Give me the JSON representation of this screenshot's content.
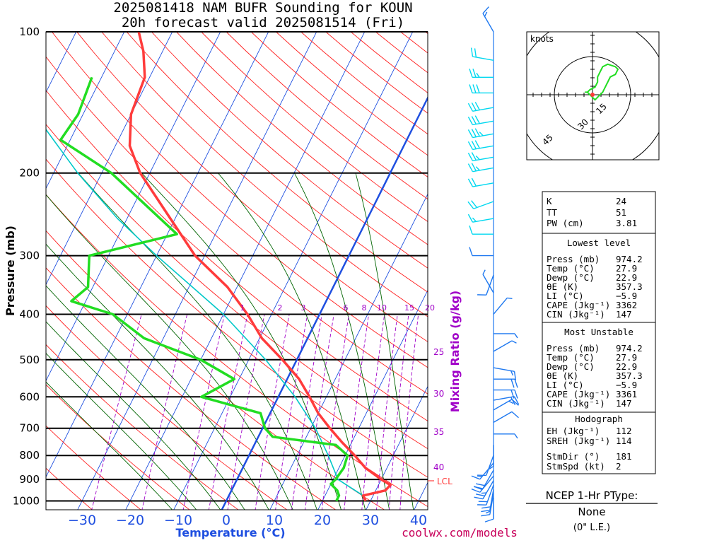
{
  "header": {
    "title_line1": "2025081418 NAM BUFR Sounding for KOUN",
    "title_line2": "20h forecast valid 2025081514 (Fri)"
  },
  "colors": {
    "temperature": "#ff3b3b",
    "dewpoint": "#22dd22",
    "parcel": "#00c8c8",
    "isotherm": "#1f4fe0",
    "dry_adiabat": "#ff2020",
    "moist_adiabat": "#006400",
    "mixing_ratio": "#a000c8",
    "freezing_line": "#1f4fe0",
    "wind_upper": "#00d8f0",
    "wind_lower": "#1e78f0"
  },
  "chart_data": {
    "type": "skew-t",
    "ylabel": "Pressure (mb)",
    "xlabel": "Temperature (°C)",
    "mixing_ratio_label": "Mixing Ratio (g/kg)",
    "pressure_ticks": [
      "100",
      "200",
      "300",
      "400",
      "500",
      "600",
      "700",
      "800",
      "900",
      "1000"
    ],
    "temperature_ticks": [
      "−30",
      "−20",
      "−10",
      "0",
      "10",
      "20",
      "30",
      "40"
    ],
    "mixing_ratio_ticks_upper": [
      "1",
      "2",
      "3",
      "6",
      "8",
      "10",
      "15",
      "20"
    ],
    "mixing_ratio_ticks_side": [
      "25",
      "30",
      "35",
      "40"
    ],
    "lcl_label": "LCL",
    "temperature_profile": [
      {
        "p": 1000,
        "t": 29.0
      },
      {
        "p": 974,
        "t": 27.9
      },
      {
        "p": 950,
        "t": 32.0
      },
      {
        "p": 925,
        "t": 32.5
      },
      {
        "p": 900,
        "t": 30.0
      },
      {
        "p": 850,
        "t": 25.5
      },
      {
        "p": 800,
        "t": 22.0
      },
      {
        "p": 750,
        "t": 18.0
      },
      {
        "p": 700,
        "t": 14.0
      },
      {
        "p": 650,
        "t": 10.0
      },
      {
        "p": 600,
        "t": 6.5
      },
      {
        "p": 550,
        "t": 2.5
      },
      {
        "p": 500,
        "t": -3.0
      },
      {
        "p": 450,
        "t": -9.5
      },
      {
        "p": 400,
        "t": -15.0
      },
      {
        "p": 350,
        "t": -22.0
      },
      {
        "p": 300,
        "t": -32.0
      },
      {
        "p": 250,
        "t": -41.0
      },
      {
        "p": 200,
        "t": -52.0
      },
      {
        "p": 175,
        "t": -57.0
      },
      {
        "p": 150,
        "t": -60.0
      },
      {
        "p": 125,
        "t": -61.0
      },
      {
        "p": 110,
        "t": -64.0
      },
      {
        "p": 100,
        "t": -67.0
      }
    ],
    "dewpoint_profile": [
      {
        "p": 1000,
        "t": 22.9
      },
      {
        "p": 974,
        "t": 22.9
      },
      {
        "p": 950,
        "t": 22.0
      },
      {
        "p": 920,
        "t": 20.0
      },
      {
        "p": 900,
        "t": 20.5
      },
      {
        "p": 850,
        "t": 21.0
      },
      {
        "p": 800,
        "t": 20.5
      },
      {
        "p": 760,
        "t": 17.0
      },
      {
        "p": 730,
        "t": 3.0
      },
      {
        "p": 700,
        "t": 0.5
      },
      {
        "p": 650,
        "t": -2.0
      },
      {
        "p": 600,
        "t": -16.0
      },
      {
        "p": 550,
        "t": -11.0
      },
      {
        "p": 500,
        "t": -20.0
      },
      {
        "p": 450,
        "t": -34.0
      },
      {
        "p": 400,
        "t": -43.0
      },
      {
        "p": 375,
        "t": -53.0
      },
      {
        "p": 350,
        "t": -51.0
      },
      {
        "p": 300,
        "t": -54.0
      },
      {
        "p": 270,
        "t": -38.0
      },
      {
        "p": 200,
        "t": -58.0
      },
      {
        "p": 170,
        "t": -72.0
      },
      {
        "p": 150,
        "t": -71.0
      },
      {
        "p": 125,
        "t": -72.0
      }
    ],
    "parcel_profile": [
      {
        "p": 974,
        "t": 27.9
      },
      {
        "p": 900,
        "t": 21.0
      },
      {
        "p": 800,
        "t": 16.5
      },
      {
        "p": 700,
        "t": 11.0
      },
      {
        "p": 600,
        "t": 3.5
      },
      {
        "p": 500,
        "t": -6.5
      },
      {
        "p": 400,
        "t": -20.0
      },
      {
        "p": 300,
        "t": -40.0
      },
      {
        "p": 250,
        "t": -52.0
      },
      {
        "p": 200,
        "t": -65.0
      },
      {
        "p": 150,
        "t": -80.0
      },
      {
        "p": 100,
        "t": -101.0
      }
    ],
    "wind_profile": [
      {
        "p": 100,
        "dir": 330,
        "spd": 15
      },
      {
        "p": 115,
        "dir": 280,
        "spd": 20
      },
      {
        "p": 125,
        "dir": 270,
        "spd": 25
      },
      {
        "p": 135,
        "dir": 270,
        "spd": 30
      },
      {
        "p": 145,
        "dir": 260,
        "spd": 30
      },
      {
        "p": 155,
        "dir": 260,
        "spd": 30
      },
      {
        "p": 165,
        "dir": 260,
        "spd": 35
      },
      {
        "p": 175,
        "dir": 260,
        "spd": 30
      },
      {
        "p": 185,
        "dir": 260,
        "spd": 25
      },
      {
        "p": 195,
        "dir": 260,
        "spd": 25
      },
      {
        "p": 210,
        "dir": 260,
        "spd": 20
      },
      {
        "p": 230,
        "dir": 250,
        "spd": 20
      },
      {
        "p": 250,
        "dir": 260,
        "spd": 15
      },
      {
        "p": 270,
        "dir": 270,
        "spd": 10
      },
      {
        "p": 300,
        "dir": 270,
        "spd": 10
      },
      {
        "p": 330,
        "dir": 200,
        "spd": 10
      },
      {
        "p": 360,
        "dir": 330,
        "spd": 5
      },
      {
        "p": 400,
        "dir": 40,
        "spd": 5
      },
      {
        "p": 440,
        "dir": 90,
        "spd": 5
      },
      {
        "p": 480,
        "dir": 60,
        "spd": 5
      },
      {
        "p": 520,
        "dir": 100,
        "spd": 15
      },
      {
        "p": 550,
        "dir": 90,
        "spd": 20
      },
      {
        "p": 580,
        "dir": 90,
        "spd": 20
      },
      {
        "p": 610,
        "dir": 80,
        "spd": 20
      },
      {
        "p": 640,
        "dir": 60,
        "spd": 15
      },
      {
        "p": 680,
        "dir": 60,
        "spd": 10
      },
      {
        "p": 720,
        "dir": 90,
        "spd": 5
      },
      {
        "p": 760,
        "dir": 180,
        "spd": 5
      },
      {
        "p": 800,
        "dir": 200,
        "spd": 10
      },
      {
        "p": 830,
        "dir": 220,
        "spd": 15
      },
      {
        "p": 860,
        "dir": 210,
        "spd": 20
      },
      {
        "p": 885,
        "dir": 220,
        "spd": 20
      },
      {
        "p": 905,
        "dir": 210,
        "spd": 25
      },
      {
        "p": 925,
        "dir": 200,
        "spd": 20
      },
      {
        "p": 945,
        "dir": 190,
        "spd": 20
      },
      {
        "p": 965,
        "dir": 190,
        "spd": 15
      },
      {
        "p": 985,
        "dir": 180,
        "spd": 10
      }
    ],
    "hodograph": {
      "units_label": "knots",
      "ring_labels": [
        "15",
        "30",
        "45"
      ],
      "points": [
        {
          "u": -1,
          "v": 0
        },
        {
          "u": -2,
          "v": 1
        },
        {
          "u": -1,
          "v": 2
        },
        {
          "u": 1,
          "v": 3
        },
        {
          "u": 2,
          "v": 5
        },
        {
          "u": 2,
          "v": 7
        },
        {
          "u": 3,
          "v": 9
        },
        {
          "u": 4,
          "v": 11
        },
        {
          "u": 6,
          "v": 12
        },
        {
          "u": 9,
          "v": 11
        },
        {
          "u": 10,
          "v": 10
        },
        {
          "u": 9,
          "v": 8
        },
        {
          "u": 7,
          "v": 7
        },
        {
          "u": 6,
          "v": 5
        },
        {
          "u": 5,
          "v": 3
        },
        {
          "u": 4,
          "v": 1
        },
        {
          "u": 2,
          "v": -1
        },
        {
          "u": 1,
          "v": -2
        },
        {
          "u": 0,
          "v": -1
        },
        {
          "u": -1,
          "v": 0
        },
        {
          "u": -2,
          "v": 1
        },
        {
          "u": -3,
          "v": 1
        }
      ],
      "storm_motion": {
        "u": 0,
        "v": 0
      }
    }
  },
  "indices": {
    "general": [
      {
        "label": "K",
        "value": "24"
      },
      {
        "label": "TT",
        "value": "51"
      },
      {
        "label": "PW (cm)",
        "value": "3.81"
      }
    ],
    "lowest_level": {
      "title": "Lowest level",
      "rows": [
        {
          "label": "Press (mb)",
          "value": "974.2"
        },
        {
          "label": "Temp (°C)",
          "value": "27.9"
        },
        {
          "label": "Dewp (°C)",
          "value": "22.9"
        },
        {
          "label": "θE (K)",
          "value": "357.3"
        },
        {
          "label": "LI (°C)",
          "value": "−5.9"
        },
        {
          "label": "CAPE (Jkg⁻¹)",
          "value": "3362"
        },
        {
          "label": "CIN (Jkg⁻¹)",
          "value": "147"
        }
      ]
    },
    "most_unstable": {
      "title": "Most Unstable",
      "rows": [
        {
          "label": "Press (mb)",
          "value": "974.2"
        },
        {
          "label": "Temp (°C)",
          "value": "27.9"
        },
        {
          "label": "Dewp (°C)",
          "value": "22.9"
        },
        {
          "label": "θE (K)",
          "value": "357.3"
        },
        {
          "label": "LI (°C)",
          "value": "−5.9"
        },
        {
          "label": "CAPE (Jkg⁻¹)",
          "value": "3361"
        },
        {
          "label": "CIN (Jkg⁻¹)",
          "value": "147"
        }
      ]
    },
    "hodograph": {
      "title": "Hodograph",
      "rows": [
        {
          "label": "EH (Jkg⁻¹)",
          "value": "112"
        },
        {
          "label": "SREH (Jkg⁻¹)",
          "value": "114"
        },
        {
          "label": "StmDir (°)",
          "value": "181"
        },
        {
          "label": "StmSpd (kt)",
          "value": "2"
        }
      ]
    }
  },
  "ptype": {
    "title": "NCEP 1-Hr PType:",
    "value": "None",
    "note": "(0\" L.E.)"
  },
  "footer": {
    "site": "coolwx.com/models"
  }
}
